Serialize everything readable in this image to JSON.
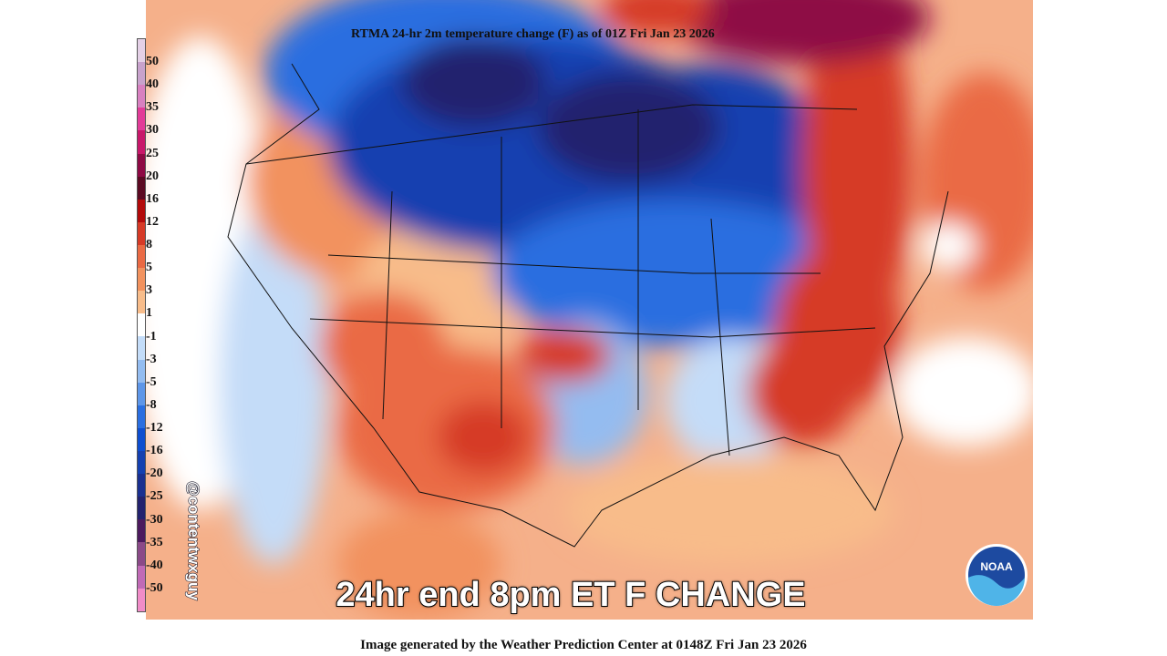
{
  "title": "RTMA 24-hr 2m temperature change (F) as of 01Z Fri Jan 23 2026",
  "caption": "24hr end 8pm ET F CHANGE",
  "footer": "Image generated by the Weather Prediction Center at 0148Z Fri Jan 23 2026",
  "watermark": "@contentwxguy",
  "logo": "NOAA",
  "legend": {
    "labels": [
      "50",
      "40",
      "35",
      "30",
      "25",
      "20",
      "16",
      "12",
      "8",
      "5",
      "3",
      "1",
      "-1",
      "-3",
      "-5",
      "-8",
      "-12",
      "-16",
      "-20",
      "-25",
      "-30",
      "-35",
      "-40",
      "-50"
    ],
    "colors": [
      "#e4d0e6",
      "#c8a2cc",
      "#d880c0",
      "#e23c98",
      "#c8186a",
      "#8e0a44",
      "#5c0a22",
      "#b20a0a",
      "#d63a26",
      "#ea6a44",
      "#f2925e",
      "#f8bc8a",
      "#ffffff",
      "#c4dcf8",
      "#94bcf0",
      "#5e96e8",
      "#2a6ee0",
      "#0e4ed0",
      "#1440b0",
      "#1a3090",
      "#23226e",
      "#4c1a5e",
      "#8a4a88",
      "#c06ab6",
      "#f08cc8"
    ]
  }
}
